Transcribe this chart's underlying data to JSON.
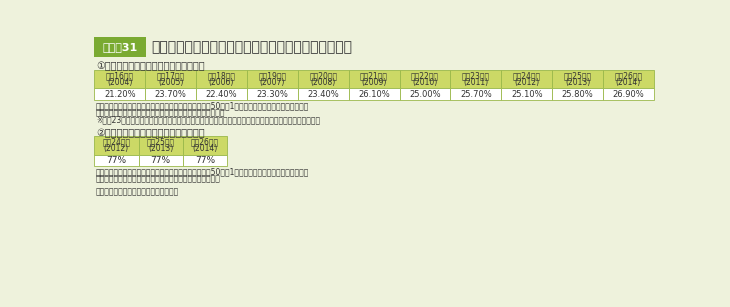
{
  "title": "学校給食における地場産物等の活用状況（年次推移）",
  "figure_label": "図表－31",
  "bg_color": "#eef2dc",
  "title_box_color": "#7aaa32",
  "title_box_text_color": "#ffffff",
  "table_border_color": "#9ab84a",
  "header_row_bg": "#ccd966",
  "value_row_bg": "#ffffff",
  "text_color": "#333333",
  "note_color": "#333333",
  "table1_title": "①学校給食における地場産物の活用状況",
  "table1_col_headers": [
    [
      "平成16年度",
      "(2004)"
    ],
    [
      "平成17年度",
      "(2005)"
    ],
    [
      "平成18年度",
      "(2006)"
    ],
    [
      "平成19年度",
      "(2007)"
    ],
    [
      "平成20年度",
      "(2008)"
    ],
    [
      "平成21年度",
      "(2009)"
    ],
    [
      "平成22年度",
      "(2010)"
    ],
    [
      "平成23年度",
      "(2011)"
    ],
    [
      "平成24年度",
      "(2012)"
    ],
    [
      "平成25年度",
      "(2013)"
    ],
    [
      "平成26年度",
      "(2014)"
    ]
  ],
  "table1_values": [
    "21.20%",
    "23.70%",
    "22.40%",
    "23.30%",
    "23.40%",
    "26.10%",
    "25.00%",
    "25.70%",
    "25.10%",
    "25.80%",
    "26.90%"
  ],
  "table1_notes": [
    "調査対象：完全給食を実施する公立小・中学校のうち、50校に1校の割合で抽出をサンプリング調査",
    "調査項目：学校給食に使用した食品のうち地場産食材の使用率",
    "※平成23年度については、東日本大震災の影響から、岩手県、宮城県及び福島県を本調査対象より除く。"
  ],
  "table2_title": "②学校給食における国産食材の活用状況",
  "table2_col_headers": [
    [
      "平成24年度",
      "(2012)"
    ],
    [
      "平成25年度",
      "(2013)"
    ],
    [
      "平成26年度",
      "(2014)"
    ]
  ],
  "table2_values": [
    "77%",
    "77%",
    "77%"
  ],
  "table2_notes": [
    "調査対象：完全給食を実施する公立小・中学校のうち、50校に1校の割合で抽出をサンプリング調査",
    "調査項目：学校給食に使用した食品のうち国産食材の使用率"
  ],
  "footer": "資料：文部科学省健康教育・食育課調べ"
}
